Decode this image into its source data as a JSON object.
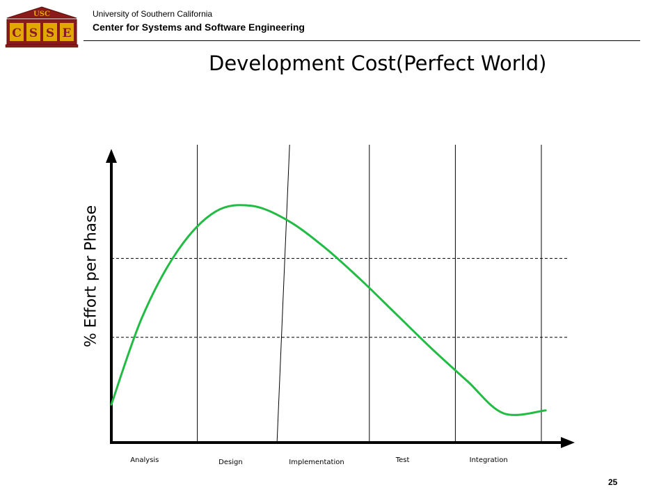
{
  "header": {
    "org_line1": "University of Southern California",
    "org_line2": "Center for Systems and Software Engineering",
    "logo": {
      "top_text": "USC",
      "letters": [
        "C",
        "S",
        "S",
        "E"
      ],
      "colors": {
        "maroon": "#8b1a1a",
        "gold": "#e0a800",
        "outline": "#5a0f0f"
      }
    }
  },
  "slide": {
    "title": "Development Cost(Perfect World)",
    "page_number": "25"
  },
  "chart_data": {
    "type": "line",
    "title": "Development Cost(Perfect World)",
    "xlabel": "",
    "ylabel": "% Effort per Phase",
    "categories": [
      "Analysis",
      "Design",
      "Implementation",
      "Test",
      "Integration"
    ],
    "phase_boundaries": [
      1,
      2,
      3,
      4,
      5
    ],
    "xlim": [
      0,
      5
    ],
    "ylim": [
      0,
      1
    ],
    "reference_lines": [
      0.63,
      0.36
    ],
    "grid": false,
    "series": [
      {
        "color": "#22bb44",
        "x": [
          0,
          0.36,
          0.78,
          1.21,
          1.63,
          2.05,
          2.47,
          2.89,
          3.31,
          3.73,
          4.14,
          4.56,
          5.05
        ],
        "y": [
          0.13,
          0.43,
          0.66,
          0.79,
          0.81,
          0.76,
          0.67,
          0.56,
          0.44,
          0.32,
          0.21,
          0.1,
          0.11
        ]
      }
    ],
    "colors": {
      "axis": "#000000",
      "curve": "#22bb44"
    }
  }
}
